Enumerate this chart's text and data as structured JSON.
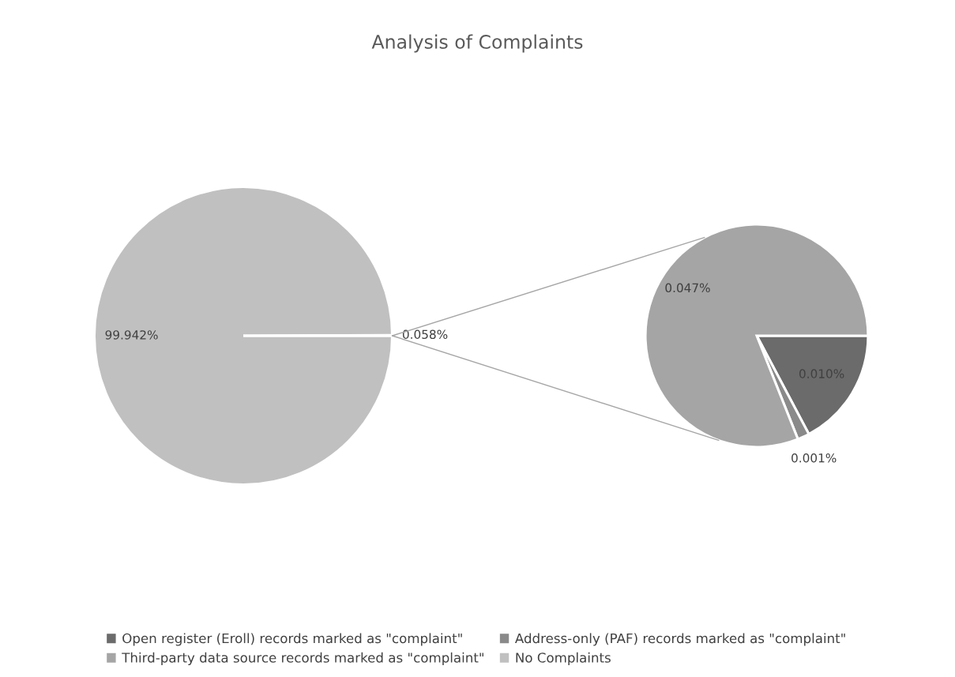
{
  "chart_data": [
    {
      "type": "pie",
      "title": "Analysis of Complaints",
      "categories": [
        "No Complaints",
        null
      ],
      "values": [
        99.942,
        0.058
      ],
      "colors": [
        "#c0c0c0",
        "#a5a5a5"
      ],
      "value_labels": [
        "99.942%",
        "0.058%"
      ],
      "legend": "bottom"
    },
    {
      "type": "pie",
      "categories": [
        "Open register (Eroll) records marked as \"complaint\"",
        "Address-only (PAF) records marked as \"complaint\"",
        "Third-party data source records marked as \"complaint\""
      ],
      "values": [
        0.01,
        0.001,
        0.047
      ],
      "colors": [
        "#6b6b6b",
        "#8a8a8a",
        "#a5a5a5"
      ],
      "value_labels": [
        "0.010%",
        "0.001%",
        "0.047%"
      ],
      "legend": "bottom"
    }
  ]
}
